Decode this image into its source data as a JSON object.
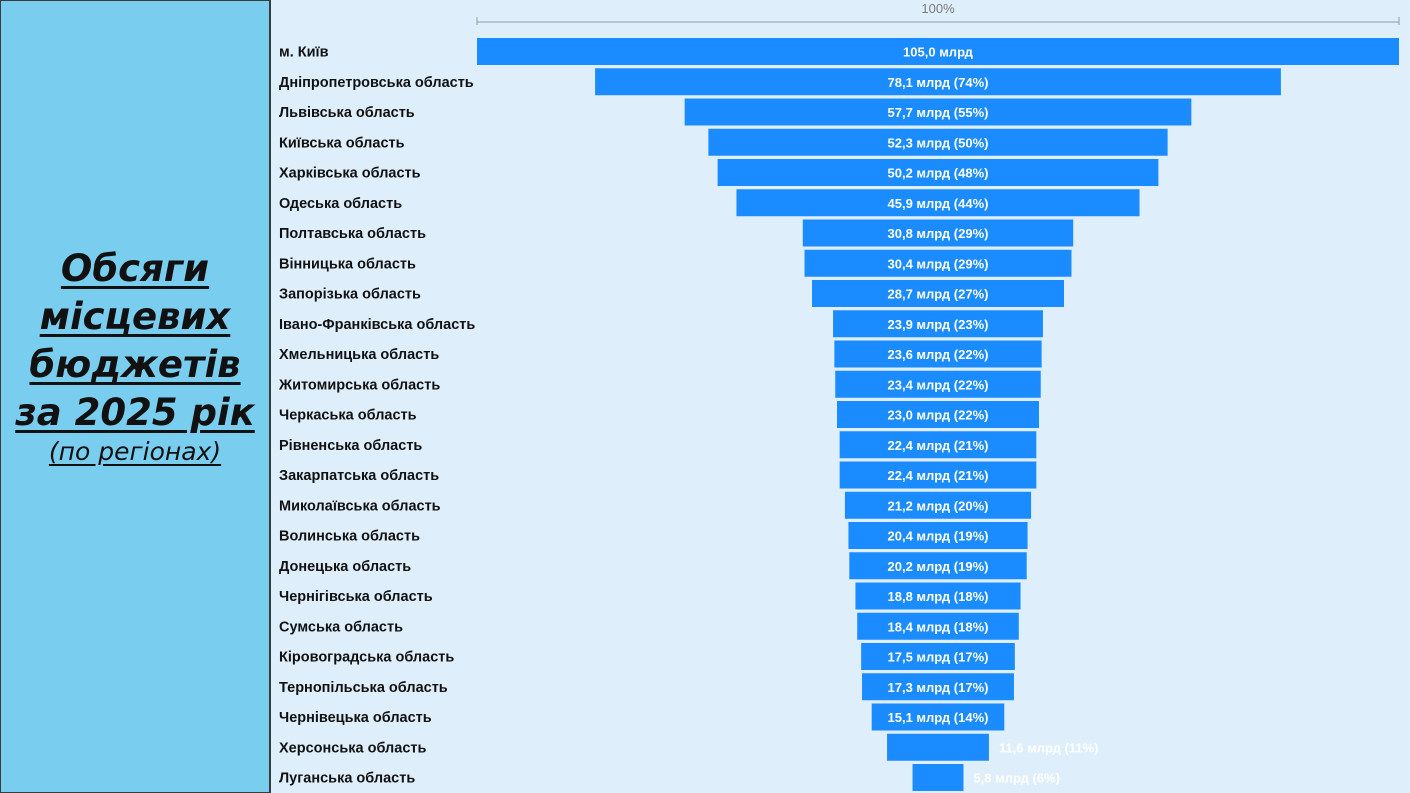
{
  "title": {
    "lines": [
      "Обсяги",
      "місцевих",
      "бюджетів",
      "за 2025 рік"
    ],
    "subtitle": "(по регіонах)"
  },
  "colors": {
    "panel": "#79cdee",
    "background": "#dfeefb",
    "bar": "#1a8cff",
    "scale": "#9a9a9a"
  },
  "chart_data": {
    "type": "bar",
    "orientation": "horizontal-funnel",
    "scale_label": "100%",
    "unit": "млрд",
    "categories": [
      "м. Київ",
      "Дніпропетровська область",
      "Львівська область",
      "Київська область",
      "Харківська область",
      "Одеська область",
      "Полтавська область",
      "Вінницька область",
      "Запорізька область",
      "Івано-Франківська область",
      "Хмельницька область",
      "Житомирська область",
      "Черкаська область",
      "Рівненська область",
      "Закарпатська область",
      "Миколаївська область",
      "Волинська область",
      "Донецька область",
      "Чернігівська область",
      "Сумська область",
      "Кіровоградська область",
      "Тернопільська область",
      "Чернівецька область",
      "Херсонська область",
      "Луганська область"
    ],
    "values": [
      105.0,
      78.1,
      57.7,
      52.3,
      50.2,
      45.9,
      30.8,
      30.4,
      28.7,
      23.9,
      23.6,
      23.4,
      23.0,
      22.4,
      22.4,
      21.2,
      20.4,
      20.2,
      18.8,
      18.4,
      17.5,
      17.3,
      15.1,
      11.6,
      5.8
    ],
    "data_labels": [
      "105,0 млрд",
      "78,1 млрд (74%)",
      "57,7 млрд (55%)",
      "52,3 млрд (50%)",
      "50,2 млрд (48%)",
      "45,9 млрд (44%)",
      "30,8 млрд (29%)",
      "30,4 млрд (29%)",
      "28,7 млрд (27%)",
      "23,9 млрд (23%)",
      "23,6 млрд (22%)",
      "23,4 млрд (22%)",
      "23,0 млрд (22%)",
      "22,4 млрд (21%)",
      "22,4 млрд (21%)",
      "21,2 млрд (20%)",
      "20,4 млрд (19%)",
      "20,2 млрд (19%)",
      "18,8 млрд (18%)",
      "18,4 млрд (18%)",
      "17,5 млрд (17%)",
      "17,3 млрд (17%)",
      "15,1 млрд (14%)",
      "11,6 млрд (11%)",
      "5,8 млрд (6%)"
    ]
  }
}
